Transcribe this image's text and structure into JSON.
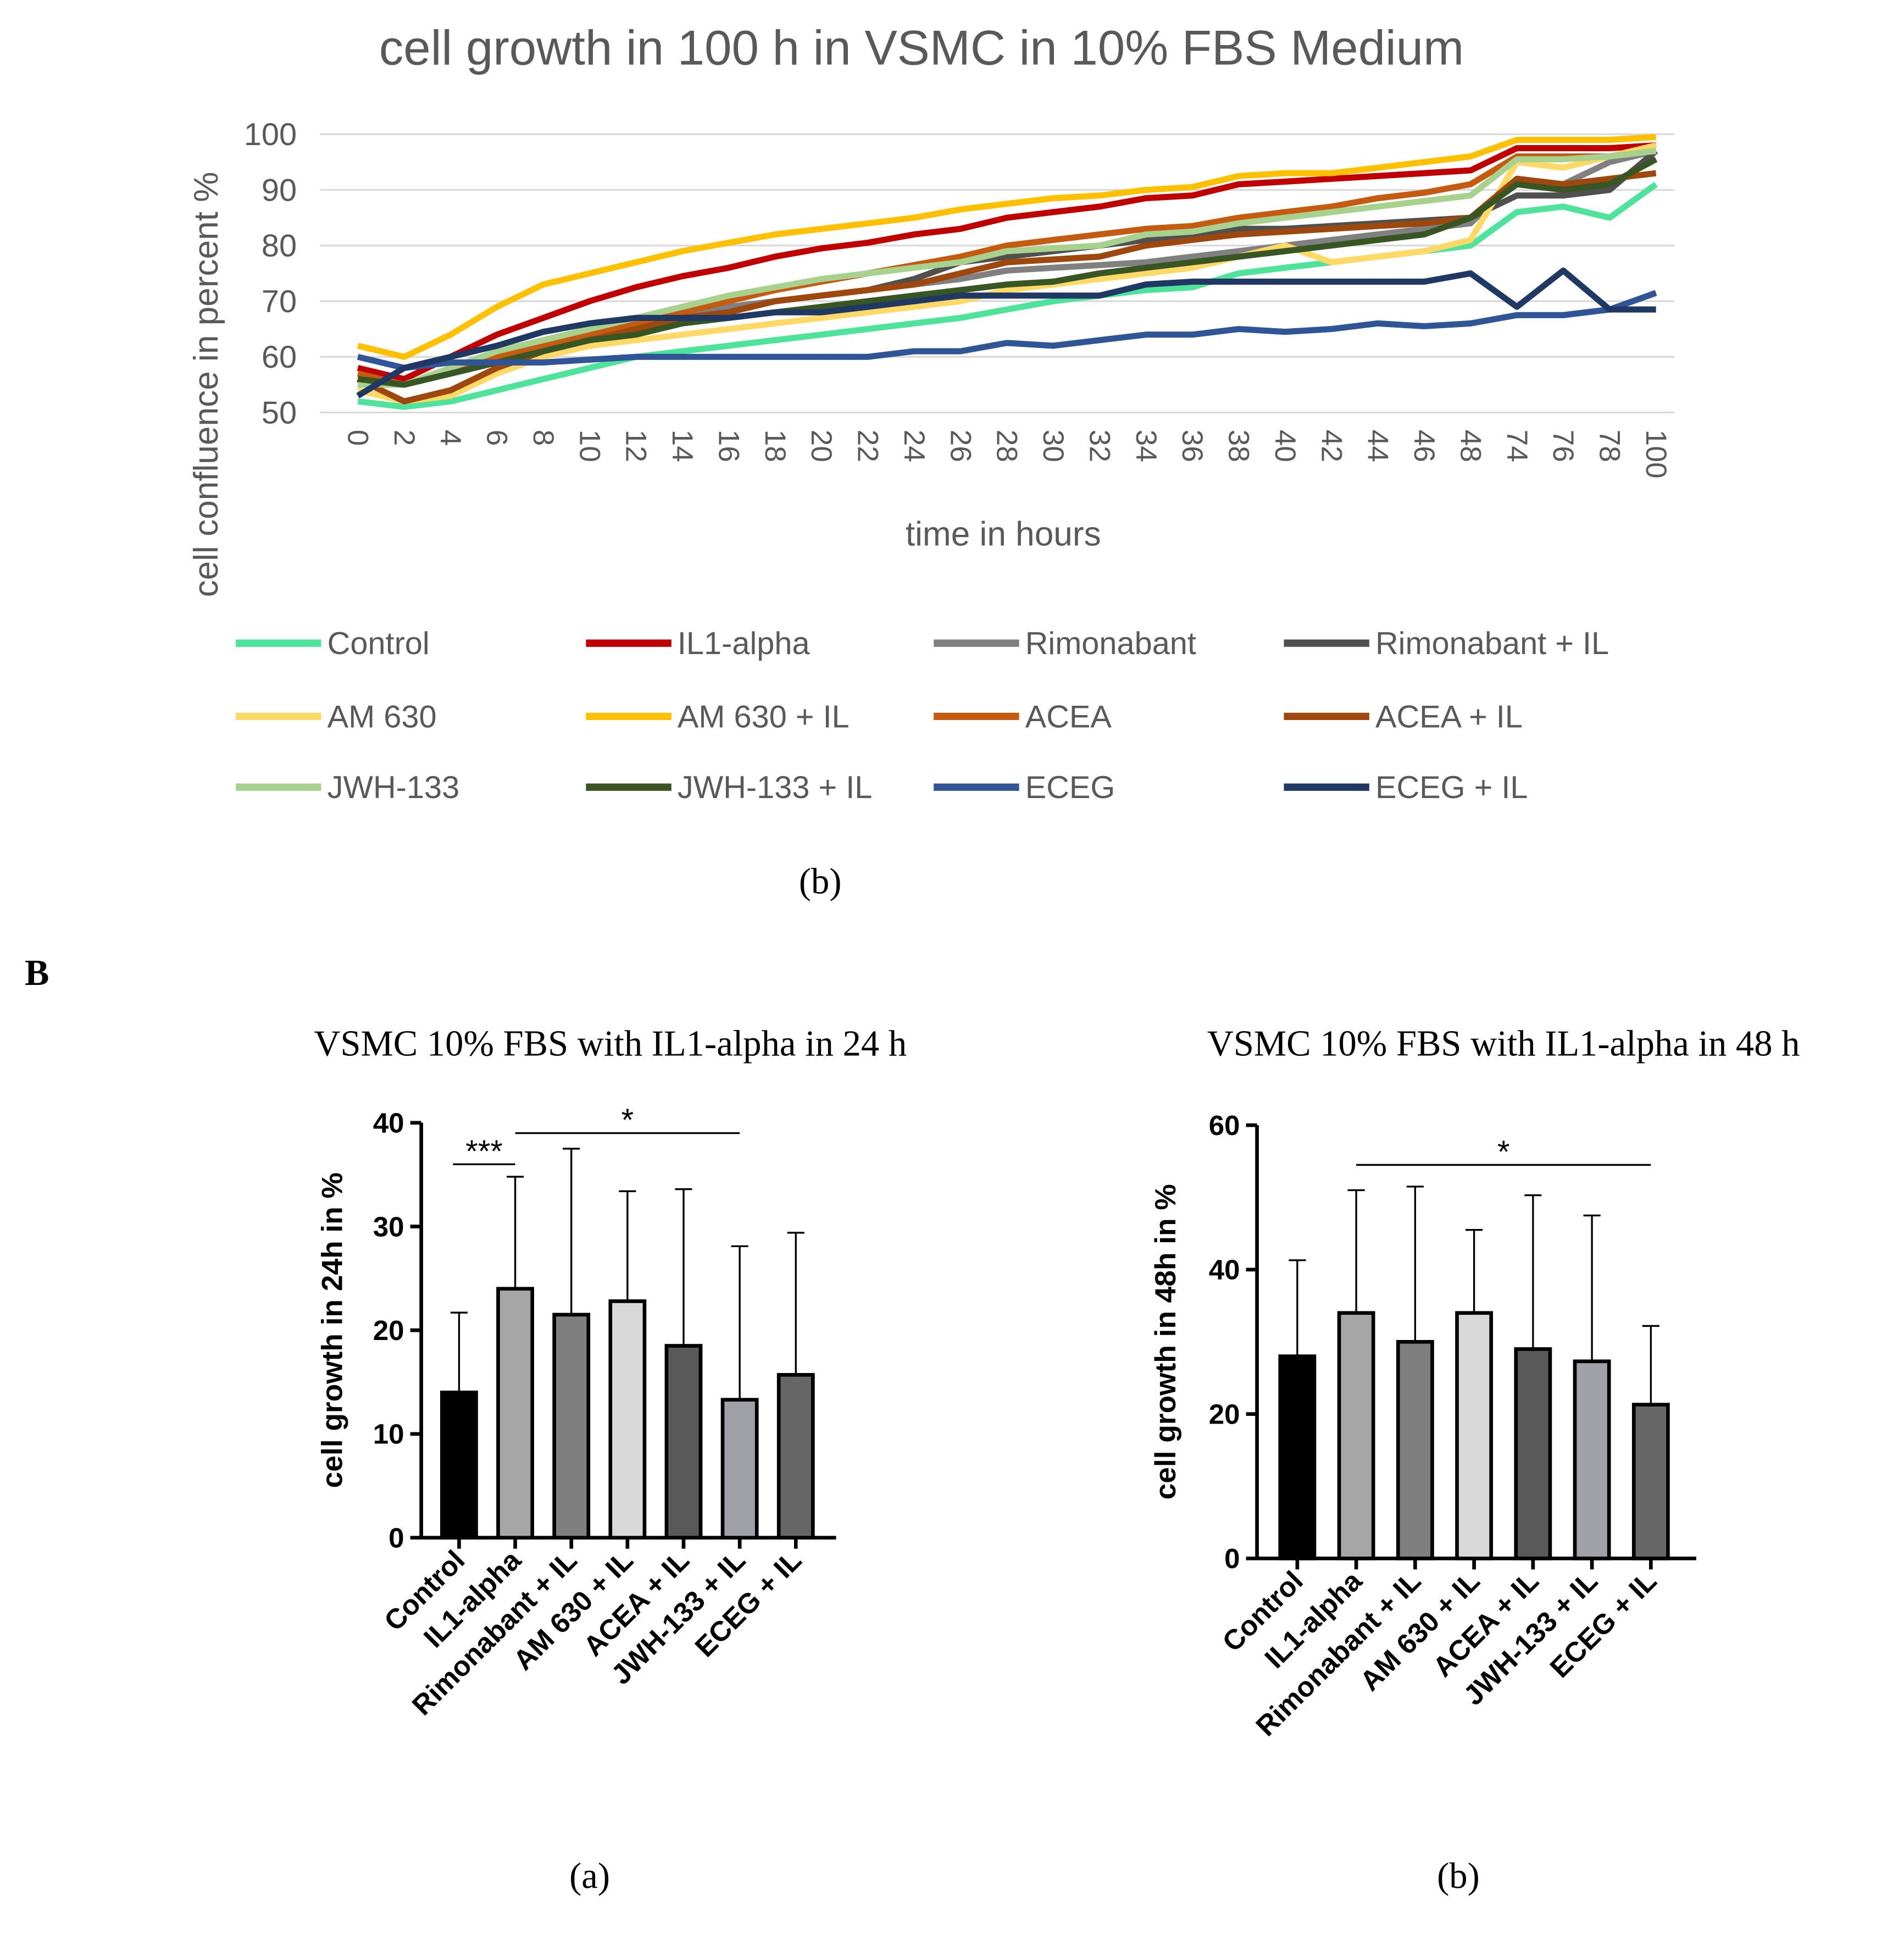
{
  "chart_data": [
    {
      "type": "line",
      "title": "cell growth in 100 h in VSMC in 10% FBS Medium",
      "xlabel": "time in hours",
      "ylabel": "cell confluence in percent %",
      "caption": "(b)",
      "ylim": [
        50,
        100
      ],
      "yticks": [
        50,
        60,
        70,
        80,
        90,
        100
      ],
      "grid": true,
      "legend_position": "bottom",
      "x": [
        "0",
        "2",
        "4",
        "6",
        "8",
        "10",
        "12",
        "14",
        "16",
        "18",
        "20",
        "22",
        "24",
        "26",
        "28",
        "30",
        "32",
        "34",
        "36",
        "38",
        "40",
        "42",
        "44",
        "46",
        "48",
        "74",
        "76",
        "78",
        "100"
      ],
      "series": [
        {
          "name": "Control",
          "color": "#4de39a",
          "values": [
            52,
            51,
            52,
            54,
            56,
            58,
            60,
            61,
            62,
            63,
            64,
            65,
            66,
            67,
            68.5,
            70,
            71,
            72,
            72.5,
            75,
            76,
            77,
            78,
            79,
            80,
            86,
            87,
            85,
            91
          ]
        },
        {
          "name": "IL1-alpha",
          "color": "#c00000",
          "values": [
            58,
            56,
            60,
            64,
            67,
            70,
            72.5,
            74.5,
            76,
            78,
            79.5,
            80.5,
            82,
            83,
            85,
            86,
            87,
            88.5,
            89,
            91,
            91.5,
            92,
            92.5,
            93,
            93.5,
            97.5,
            97.5,
            97.5,
            98
          ]
        },
        {
          "name": "Rimonabant",
          "color": "#808080",
          "values": [
            56,
            55,
            57,
            59,
            61,
            63,
            65,
            67,
            69,
            70,
            71,
            72,
            73,
            74,
            75.5,
            76,
            76.5,
            77,
            78,
            79,
            80,
            81,
            82,
            83,
            84,
            92,
            91,
            95,
            97
          ]
        },
        {
          "name": "Rimonabant + IL",
          "color": "#505050",
          "values": [
            55,
            55,
            57,
            59,
            61,
            63,
            65,
            67,
            68,
            70,
            71,
            72,
            74,
            77,
            78,
            79,
            80,
            81,
            82,
            83,
            83,
            83.5,
            84,
            84.5,
            85,
            89,
            89,
            90,
            97
          ]
        },
        {
          "name": "AM 630",
          "color": "#ffd966",
          "values": [
            54,
            52,
            53,
            57,
            60,
            62,
            63,
            64,
            65,
            66,
            67,
            68,
            69,
            70,
            72,
            73,
            74,
            75,
            76,
            78,
            80,
            77,
            78,
            79,
            81,
            95,
            94,
            96,
            98
          ]
        },
        {
          "name": "AM 630 + IL",
          "color": "#ffc000",
          "values": [
            62,
            60,
            64,
            69,
            73,
            75,
            77,
            79,
            80.5,
            82,
            83,
            84,
            85,
            86.5,
            87.5,
            88.5,
            89,
            90,
            90.5,
            92.5,
            93,
            93,
            94,
            95,
            96,
            99,
            99,
            99,
            99.5
          ]
        },
        {
          "name": "ACEA",
          "color": "#c55a11",
          "values": [
            57,
            55,
            58,
            60,
            62,
            64,
            66,
            68,
            70,
            72,
            73.5,
            75,
            76.5,
            78,
            80,
            81,
            82,
            83,
            83.5,
            85,
            86,
            87,
            88.5,
            89.5,
            91,
            96,
            96,
            96,
            97
          ]
        },
        {
          "name": "ACEA + IL",
          "color": "#9e480e",
          "values": [
            56,
            52,
            54,
            58,
            61,
            63,
            65,
            67,
            68,
            70,
            71,
            72,
            73,
            75,
            77,
            77.5,
            78,
            80,
            81,
            82,
            82.5,
            83,
            83.5,
            84,
            85,
            92,
            91,
            92,
            93
          ]
        },
        {
          "name": "JWH-133",
          "color": "#a9d18e",
          "values": [
            55,
            55,
            58,
            61,
            63,
            65,
            67,
            69,
            71,
            72.5,
            74,
            75,
            76,
            77,
            79,
            79.5,
            80,
            82,
            82.5,
            84,
            85,
            86,
            87,
            88,
            89,
            95.5,
            95.5,
            96,
            97
          ]
        },
        {
          "name": "JWH-133 + IL",
          "color": "#375623",
          "values": [
            56,
            55,
            57,
            59,
            61,
            63,
            64,
            66,
            67,
            68,
            69,
            70,
            71,
            72,
            73,
            73.5,
            75,
            76,
            77,
            78,
            79,
            80,
            81,
            82,
            85,
            91,
            90,
            91,
            95.5
          ]
        },
        {
          "name": "ECEG",
          "color": "#2f5597",
          "values": [
            60,
            58,
            59,
            59,
            59,
            59.5,
            60,
            60,
            60,
            60,
            60,
            60,
            61,
            61,
            62.5,
            62,
            63,
            64,
            64,
            65,
            64.5,
            65,
            66,
            65.5,
            66,
            67.5,
            67.5,
            68.5,
            71.5
          ]
        },
        {
          "name": "ECEG + IL",
          "color": "#1f3864",
          "values": [
            53,
            58,
            60,
            62,
            64.5,
            66,
            67,
            67,
            67,
            68,
            68,
            69,
            70,
            71,
            71,
            71,
            71,
            73,
            73.5,
            73.5,
            73.5,
            73.5,
            73.5,
            73.5,
            75,
            69,
            75.5,
            68.5,
            68.5
          ]
        }
      ]
    },
    {
      "type": "bar",
      "title": "VSMC 10% FBS with IL1-alpha in 24 h",
      "ylabel": "cell growth in 24h in %",
      "caption": "(a)",
      "ylim": [
        0,
        40
      ],
      "yticks": [
        0,
        10,
        20,
        30,
        40
      ],
      "categories": [
        "Control",
        "IL1-alpha",
        "Rimonabant + IL",
        "AM 630 + IL",
        "ACEA + IL",
        "JWH-133 + IL",
        "ECEG + IL"
      ],
      "values": [
        14,
        24,
        21.5,
        22.8,
        18.5,
        13.3,
        15.7
      ],
      "error_upper": [
        21.7,
        34.8,
        37.5,
        33.4,
        33.6,
        28.1,
        29.4
      ],
      "colors": [
        "#000000",
        "#a6a6a6",
        "#7f7f7f",
        "#d9d9d9",
        "#595959",
        "#a0a0a8",
        "#666666"
      ],
      "significance": [
        {
          "label": "***",
          "from": 0,
          "to": 1,
          "level": 36
        },
        {
          "label": "*",
          "from": 1,
          "to": 5,
          "level": 39
        }
      ]
    },
    {
      "type": "bar",
      "title": "VSMC 10% FBS with IL1-alpha in 48 h",
      "ylabel": "cell growth in 48h in %",
      "caption": "(b)",
      "ylim": [
        0,
        60
      ],
      "yticks": [
        0,
        20,
        40,
        60
      ],
      "categories": [
        "Control",
        "IL1-alpha",
        "Rimonabant + IL",
        "AM 630 + IL",
        "ACEA + IL",
        "JWH-133 + IL",
        "ECEG + IL"
      ],
      "values": [
        28,
        34,
        30,
        34,
        29,
        27.3,
        21.3
      ],
      "error_upper": [
        41.3,
        51,
        51.5,
        45.5,
        50.3,
        47.5,
        32.2
      ],
      "colors": [
        "#000000",
        "#a6a6a6",
        "#7f7f7f",
        "#d9d9d9",
        "#595959",
        "#a0a0a8",
        "#666666"
      ],
      "significance": [
        {
          "label": "*",
          "from": 1,
          "to": 6,
          "level": 54.5
        }
      ]
    }
  ],
  "panel_label": "B"
}
